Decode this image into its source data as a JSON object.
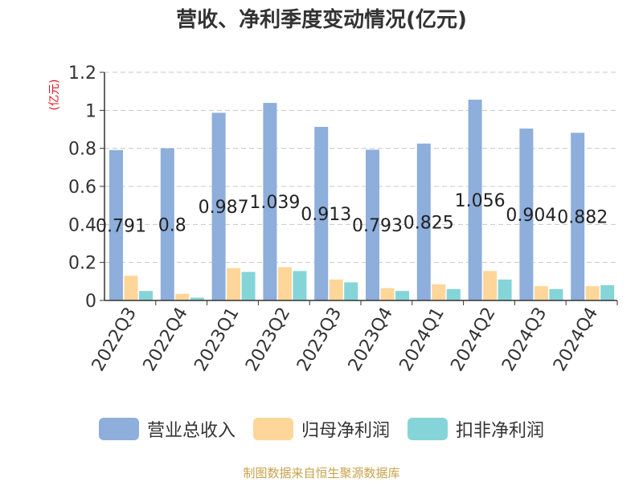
{
  "chart_data": {
    "type": "bar",
    "title": "营收、净利季度变动情况(亿元)",
    "ylabel": "(亿元)",
    "ylim": [
      0,
      1.2
    ],
    "yticks": [
      "0",
      "0.2",
      "0.4",
      "0.6",
      "0.8",
      "1",
      "1.2"
    ],
    "grid": true,
    "legend_position": "bottom",
    "categories": [
      "2022Q3",
      "2022Q4",
      "2023Q1",
      "2023Q2",
      "2023Q3",
      "2023Q4",
      "2024Q1",
      "2024Q2",
      "2024Q3",
      "2024Q4"
    ],
    "series": [
      {
        "name": "营业总收入",
        "color": "#8eaedb",
        "values": [
          0.791,
          0.8,
          0.987,
          1.039,
          0.913,
          0.793,
          0.825,
          1.056,
          0.904,
          0.882
        ],
        "labels": [
          "0.791",
          "0.8",
          "0.987",
          "1.039",
          "0.913",
          "0.793",
          "0.825",
          "1.056",
          "0.904",
          "0.882"
        ]
      },
      {
        "name": "归母净利润",
        "color": "#ffd699",
        "values": [
          0.13,
          0.035,
          0.17,
          0.175,
          0.11,
          0.065,
          0.085,
          0.155,
          0.075,
          0.075
        ]
      },
      {
        "name": "扣非净利润",
        "color": "#85d5d8",
        "values": [
          0.05,
          0.015,
          0.15,
          0.155,
          0.095,
          0.05,
          0.06,
          0.11,
          0.06,
          0.08
        ]
      }
    ]
  },
  "source_note": "制图数据来自恒生聚源数据库"
}
